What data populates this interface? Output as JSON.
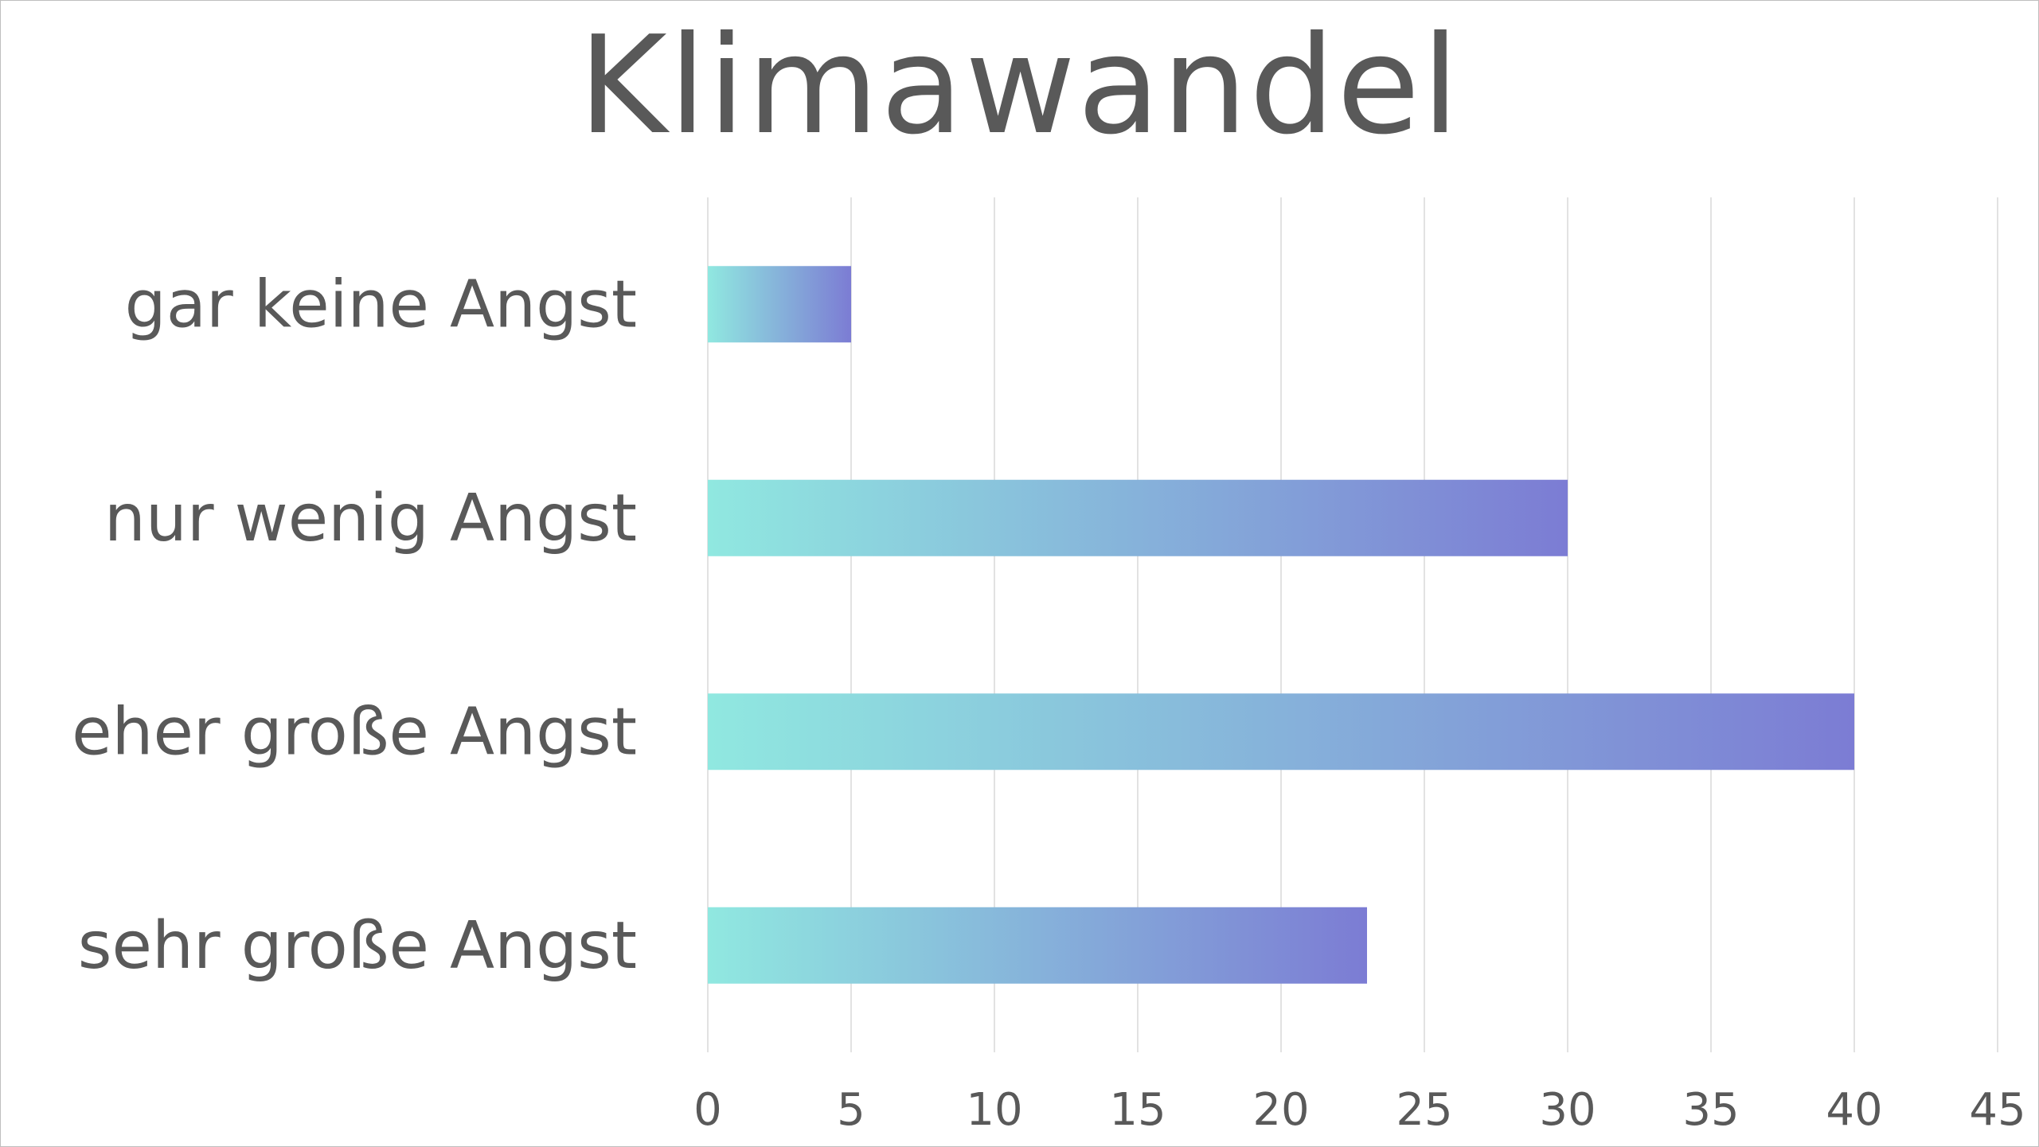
{
  "chart_data": {
    "type": "bar",
    "orientation": "horizontal",
    "title": "Klimawandel",
    "categories": [
      "gar keine Angst",
      "nur wenig Angst",
      "eher große Angst",
      "sehr große Angst"
    ],
    "values": [
      5,
      30,
      40,
      23
    ],
    "xlim": [
      0,
      45
    ],
    "x_ticks": [
      "0",
      "5",
      "10",
      "15",
      "20",
      "25",
      "30",
      "35",
      "40",
      "45"
    ],
    "xlabel": "",
    "ylabel": "",
    "grid": true,
    "legend": "none",
    "bar_gradient": [
      "#90e8e0",
      "#7c7cd4"
    ],
    "grid_color": "#e2e2e2",
    "text_color": "#595959"
  }
}
